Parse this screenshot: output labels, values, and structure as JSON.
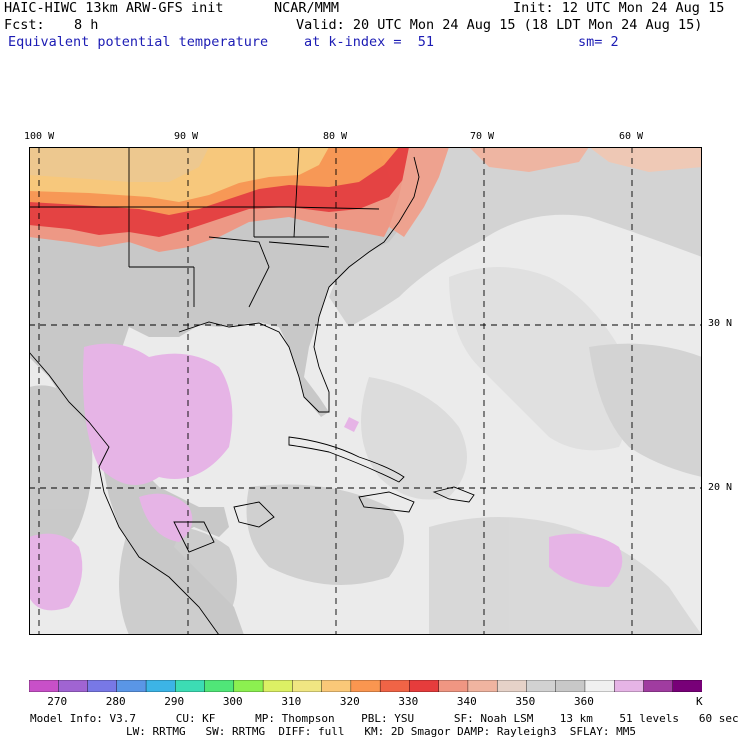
{
  "header": {
    "model_title": "HAIC-HIWC 13km ARW-GFS init",
    "org": "NCAR/MMM",
    "init": "Init: 12 UTC Mon 24 Aug 15",
    "fcst_label": "Fcst:",
    "fcst_value": "8 h",
    "valid": "Valid: 20 UTC Mon 24 Aug 15 (18 LDT Mon 24 Aug 15)",
    "field": "Equivalent potential temperature",
    "level": "at k-index =  51",
    "smoothing": "sm= 2"
  },
  "axes": {
    "lon_labels": [
      "100 W",
      "90 W",
      "80 W",
      "70 W",
      "60 W"
    ],
    "lat_labels": [
      "30 N",
      "20 N"
    ]
  },
  "colorbar": {
    "colors": [
      "#c850c8",
      "#a064d2",
      "#7878e6",
      "#5a96e6",
      "#3cb4e6",
      "#3cdcb4",
      "#50e678",
      "#8cf050",
      "#dcf064",
      "#f0e682",
      "#fac878",
      "#fa9650",
      "#f06446",
      "#e63c3c",
      "#f09682",
      "#f0b4a0",
      "#e6d2c8",
      "#d2d2d2",
      "#c8c8c8",
      "#f0f0f0",
      "#e6b4e6",
      "#a03ca0",
      "#780078"
    ],
    "labels": [
      "270",
      "280",
      "290",
      "300",
      "310",
      "320",
      "330",
      "340",
      "350",
      "360"
    ],
    "unit": "K"
  },
  "footer": {
    "line1": "Model Info: V3.7      CU: KF      MP: Thompson    PBL: YSU      SF: Noah LSM    13 km    51 levels   60 sec",
    "line2": "LW: RRTMG   SW: RRTMG  DIFF: full   KM: 2D Smagor DAMP: Rayleigh3  SFLAY: MM5"
  }
}
